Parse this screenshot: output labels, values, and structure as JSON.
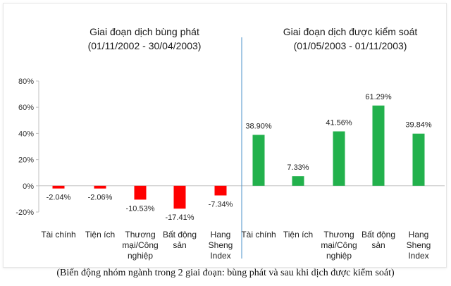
{
  "colors": {
    "negative": "#ff0000",
    "positive": "#22b14c",
    "axis": "#bfbfbf",
    "divider": "#4a90c8"
  },
  "panels": [
    {
      "title_line1": "Giai đoạn dịch bùng phát",
      "title_line2": "(01/11/2002 - 30/04/2003)"
    },
    {
      "title_line1": "Giai đoạn dịch được kiểm soát",
      "title_line2": "(01/05/2003 - 01/11/2003)"
    }
  ],
  "caption": "(Biến động nhóm ngành trong 2 giai đoạn: bùng phát và sau khi dịch được kiểm soát)",
  "chart_data": {
    "type": "bar",
    "ylim": [
      -20,
      80
    ],
    "yticks": [
      "80%",
      "60%",
      "40%",
      "20%",
      "0%",
      "-20%"
    ],
    "grid": false,
    "series": [
      {
        "categories": [
          [
            "Tài chính"
          ],
          [
            "Tiện ích"
          ],
          [
            "Thương",
            "mại/Công",
            "nghiệp"
          ],
          [
            "Bất động",
            "sản"
          ],
          [
            "Hang",
            "Sheng",
            "Index"
          ]
        ],
        "values": [
          -2.04,
          -2.06,
          -10.53,
          -17.41,
          -7.34
        ],
        "labels": [
          "-2.04%",
          "-2.06%",
          "-10.53%",
          "-17.41%",
          "-7.34%"
        ]
      },
      {
        "categories": [
          [
            "Tài chính"
          ],
          [
            "Tiện ích"
          ],
          [
            "Thương",
            "mại/Công",
            "nghiệp"
          ],
          [
            "Bất động",
            "sản"
          ],
          [
            "Hang",
            "Sheng",
            "Index"
          ]
        ],
        "values": [
          38.9,
          7.33,
          41.56,
          61.29,
          39.84
        ],
        "labels": [
          "38.90%",
          "7.33%",
          "41.56%",
          "61.29%",
          "39.84%"
        ]
      }
    ]
  }
}
